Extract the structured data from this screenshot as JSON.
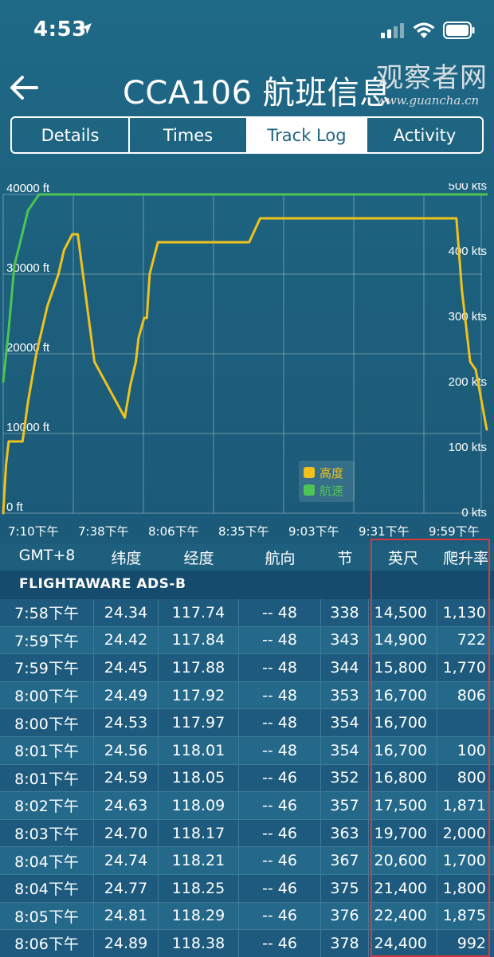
{
  "status_bar": {
    "time": "4:53"
  },
  "header": {
    "title": "CCA106 航班信息",
    "watermark_cn": "观察者网",
    "watermark_url": "www.guancha.cn"
  },
  "tabs": [
    {
      "label": "Details",
      "active": false
    },
    {
      "label": "Times",
      "active": false
    },
    {
      "label": "Track Log",
      "active": true
    },
    {
      "label": "Activity",
      "active": false
    }
  ],
  "chart_data": {
    "type": "line",
    "x_ticks": [
      "7:10下午",
      "7:38下午",
      "8:06下午",
      "8:35下午",
      "9:03下午",
      "9:31下午",
      "9:59下午"
    ],
    "left_axis": {
      "ticks": [
        "0 ft",
        "10000 ft",
        "20000 ft",
        "30000 ft",
        "40000 ft"
      ],
      "ylim": [
        0,
        40000
      ]
    },
    "right_axis": {
      "ticks": [
        "0 kts",
        "100 kts",
        "200 kts",
        "300 kts",
        "400 kts",
        "500 kts"
      ],
      "ylim": [
        0,
        500
      ]
    },
    "xlim_minutes": [
      0,
      173
    ],
    "legend": [
      "高度",
      "航速"
    ],
    "colors": {
      "altitude": "#f1c21b",
      "speed": "#4cc552"
    },
    "series": [
      {
        "name": "高度",
        "axis": "left",
        "points": [
          [
            0,
            0
          ],
          [
            1,
            6000
          ],
          [
            2,
            9000
          ],
          [
            7,
            9000
          ],
          [
            9,
            14000
          ],
          [
            12,
            20000
          ],
          [
            16,
            26000
          ],
          [
            20,
            30000
          ],
          [
            22,
            33000
          ],
          [
            25,
            35000
          ],
          [
            27,
            35000
          ],
          [
            30,
            27000
          ],
          [
            33,
            19000
          ],
          [
            44,
            12000
          ],
          [
            46,
            16000
          ],
          [
            48,
            19000
          ],
          [
            49,
            22000
          ],
          [
            51,
            24500
          ],
          [
            52,
            24500
          ],
          [
            53,
            30000
          ],
          [
            56,
            34000
          ],
          [
            69,
            34000
          ],
          [
            89,
            34000
          ],
          [
            93,
            37000
          ],
          [
            160,
            37000
          ],
          [
            164,
            37000
          ],
          [
            166,
            28000
          ],
          [
            169,
            19000
          ],
          [
            171,
            18000
          ],
          [
            175,
            10500
          ]
        ]
      },
      {
        "name": "航速",
        "axis": "left",
        "points": [
          [
            0,
            16500
          ],
          [
            2,
            23000
          ],
          [
            4,
            31000
          ],
          [
            9,
            38000
          ],
          [
            13,
            45000
          ],
          [
            17,
            50000
          ],
          [
            21,
            52500
          ],
          [
            24,
            48000
          ],
          [
            27,
            50000
          ],
          [
            29,
            55000
          ],
          [
            32,
            53000
          ],
          [
            36,
            57000
          ],
          [
            39,
            56000
          ],
          [
            44,
            50000
          ],
          [
            48,
            42000
          ],
          [
            50,
            45000
          ],
          [
            52,
            50000
          ],
          [
            56,
            48500
          ],
          [
            60,
            49000
          ],
          [
            63,
            50000
          ],
          [
            67,
            49000
          ],
          [
            72,
            50000
          ],
          [
            76,
            50000
          ],
          [
            78,
            48000
          ],
          [
            81,
            48000
          ],
          [
            82,
            56000
          ],
          [
            84,
            49000
          ],
          [
            88,
            49000
          ],
          [
            91,
            51000
          ],
          [
            95,
            52000
          ],
          [
            100,
            53000
          ],
          [
            105,
            55000
          ],
          [
            110,
            57000
          ],
          [
            115,
            57000
          ],
          [
            120,
            56000
          ],
          [
            125,
            57500
          ],
          [
            130,
            56000
          ],
          [
            135,
            56000
          ],
          [
            137,
            60000
          ],
          [
            139,
            57000
          ],
          [
            141,
            56000
          ],
          [
            149,
            55500
          ],
          [
            155,
            54500
          ],
          [
            160,
            54000
          ],
          [
            163,
            55500
          ],
          [
            165,
            55000
          ],
          [
            167,
            53000
          ],
          [
            169,
            51000
          ],
          [
            172,
            50000
          ],
          [
            175,
            47500
          ]
        ]
      }
    ]
  },
  "table": {
    "headers": [
      "GMT+8",
      "纬度",
      "经度",
      "航向",
      "节",
      "英尺",
      "爬升率"
    ],
    "source": "FLIGHTAWARE ADS-B",
    "rows": [
      [
        "7:58下午",
        "24.34",
        "117.74",
        "-- 48",
        "338",
        "14,500",
        "1,130"
      ],
      [
        "7:59下午",
        "24.42",
        "117.84",
        "-- 48",
        "343",
        "14,900",
        "722"
      ],
      [
        "7:59下午",
        "24.45",
        "117.88",
        "-- 48",
        "344",
        "15,800",
        "1,770"
      ],
      [
        "8:00下午",
        "24.49",
        "117.92",
        "-- 48",
        "353",
        "16,700",
        "806"
      ],
      [
        "8:00下午",
        "24.53",
        "117.97",
        "-- 48",
        "354",
        "16,700",
        ""
      ],
      [
        "8:01下午",
        "24.56",
        "118.01",
        "-- 48",
        "354",
        "16,700",
        "100"
      ],
      [
        "8:01下午",
        "24.59",
        "118.05",
        "-- 46",
        "352",
        "16,800",
        "800"
      ],
      [
        "8:02下午",
        "24.63",
        "118.09",
        "-- 46",
        "357",
        "17,500",
        "1,871"
      ],
      [
        "8:03下午",
        "24.70",
        "118.17",
        "-- 46",
        "363",
        "19,700",
        "2,000"
      ],
      [
        "8:04下午",
        "24.74",
        "118.21",
        "-- 46",
        "367",
        "20,600",
        "1,700"
      ],
      [
        "8:04下午",
        "24.77",
        "118.25",
        "-- 46",
        "375",
        "21,400",
        "1,800"
      ],
      [
        "8:05下午",
        "24.81",
        "118.29",
        "-- 46",
        "376",
        "22,400",
        "1,875"
      ],
      [
        "8:06下午",
        "24.89",
        "118.38",
        "-- 46",
        "378",
        "24,400",
        "992"
      ]
    ]
  }
}
